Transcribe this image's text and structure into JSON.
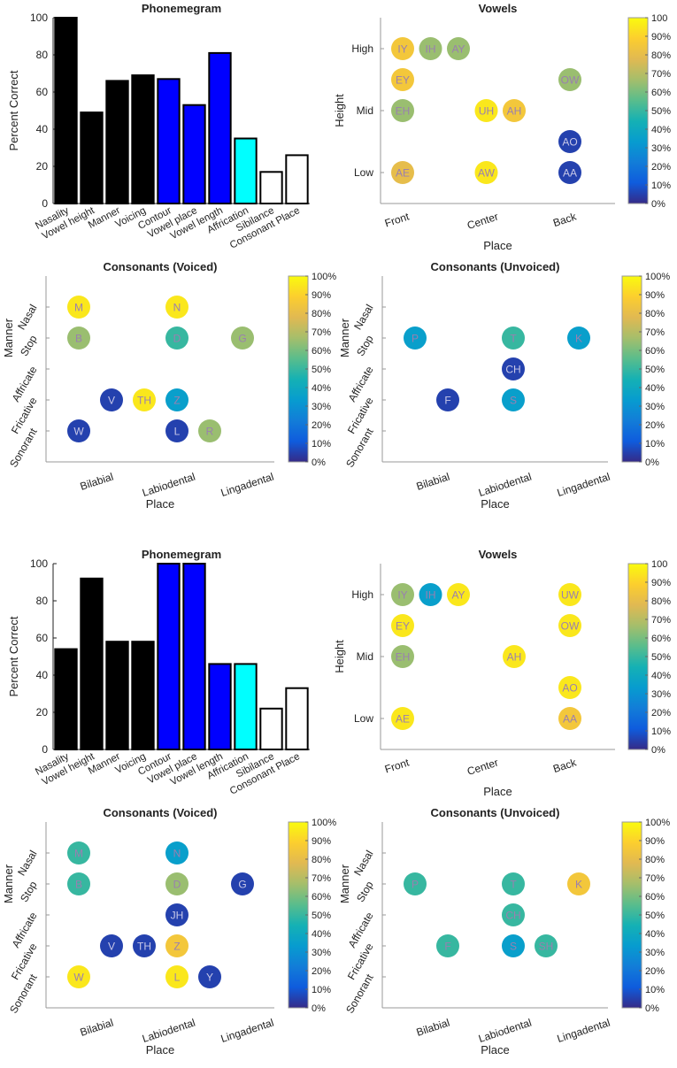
{
  "figure": {
    "description_visible": false
  },
  "charts": [
    {
      "id": "top-phonemegram",
      "type": "bar",
      "title": "Phonemegram",
      "ylabel": "Percent Correct",
      "xlabel": "",
      "ylim": [
        0,
        100
      ],
      "yticks": [
        0,
        20,
        40,
        60,
        80,
        100
      ],
      "categories": [
        "Nasality",
        "Vowel height",
        "Manner",
        "Voicing",
        "Contour",
        "Vowel place",
        "Vowel length",
        "Affrication",
        "Sibilance",
        "Consonant Place"
      ],
      "values": [
        100,
        49,
        66,
        69,
        67,
        53,
        81,
        35,
        17,
        26
      ],
      "colors": [
        "#000000",
        "#000000",
        "#000000",
        "#000000",
        "#0000ff",
        "#0000ff",
        "#0000ff",
        "#00ffff",
        "#ffffff",
        "#ffffff"
      ]
    },
    {
      "id": "top-vowels",
      "type": "scatter",
      "title": "Vowels",
      "xlabel": "Place",
      "ylabel": "Height",
      "xticks": [
        "Front",
        "Center",
        "Back"
      ],
      "yticks": [
        "High",
        "Mid",
        "Low"
      ],
      "colorbar_ticks": [
        "0%",
        "10%",
        "20%",
        "30%",
        "40%",
        "50%",
        "60%",
        "70%",
        "80%",
        "90%",
        "100"
      ],
      "points": [
        {
          "label": "IY",
          "col": 1,
          "row": 1,
          "value": 85
        },
        {
          "label": "IH",
          "col": 2,
          "row": 1,
          "value": 65
        },
        {
          "label": "AY",
          "col": 3,
          "row": 1,
          "value": 65
        },
        {
          "label": "EY",
          "col": 1,
          "row": 2,
          "value": 85
        },
        {
          "label": "OW",
          "col": 7,
          "row": 2,
          "value": 65
        },
        {
          "label": "EH",
          "col": 1,
          "row": 3,
          "value": 65
        },
        {
          "label": "UH",
          "col": 4,
          "row": 3,
          "value": 95
        },
        {
          "label": "AH",
          "col": 5,
          "row": 3,
          "value": 85
        },
        {
          "label": "AO",
          "col": 7,
          "row": 4,
          "value": 5
        },
        {
          "label": "AE",
          "col": 1,
          "row": 5,
          "value": 80
        },
        {
          "label": "AW",
          "col": 4,
          "row": 5,
          "value": 95
        },
        {
          "label": "AA",
          "col": 7,
          "row": 5,
          "value": 5
        }
      ]
    },
    {
      "id": "top-cons-voiced",
      "type": "scatter",
      "title": "Consonants (Voiced)",
      "xlabel": "Place",
      "ylabel": "Manner",
      "xticks": [
        "Bilabial",
        "Labiodental",
        "Lingadental"
      ],
      "yticks": [
        "Nasal",
        "Stop",
        "Affricate",
        "Fricative",
        "Sonorant"
      ],
      "colorbar_ticks": [
        "0%",
        "10%",
        "20%",
        "30%",
        "40%",
        "50%",
        "60%",
        "70%",
        "80%",
        "90%",
        "100%"
      ],
      "points": [
        {
          "label": "M",
          "col": 1,
          "row": 1,
          "value": 95
        },
        {
          "label": "N",
          "col": 4,
          "row": 1,
          "value": 95
        },
        {
          "label": "B",
          "col": 1,
          "row": 2,
          "value": 65
        },
        {
          "label": "D",
          "col": 4,
          "row": 2,
          "value": 50
        },
        {
          "label": "G",
          "col": 6,
          "row": 2,
          "value": 65
        },
        {
          "label": "V",
          "col": 2,
          "row": 4,
          "value": 5
        },
        {
          "label": "TH",
          "col": 3,
          "row": 4,
          "value": 95
        },
        {
          "label": "Z",
          "col": 4,
          "row": 4,
          "value": 35
        },
        {
          "label": "W",
          "col": 1,
          "row": 5,
          "value": 5
        },
        {
          "label": "L",
          "col": 4,
          "row": 5,
          "value": 5
        },
        {
          "label": "R",
          "col": 5,
          "row": 5,
          "value": 65
        }
      ]
    },
    {
      "id": "top-cons-unvoiced",
      "type": "scatter",
      "title": "Consonants (Unvoiced)",
      "xlabel": "Place",
      "ylabel": "Manner",
      "xticks": [
        "Bilabial",
        "Labiodental",
        "Lingadental"
      ],
      "yticks": [
        "Nasal",
        "Stop",
        "Affricate",
        "Fricative",
        "Sonorant"
      ],
      "colorbar_ticks": [
        "0%",
        "10%",
        "20%",
        "30%",
        "40%",
        "50%",
        "60%",
        "70%",
        "80%",
        "90%",
        "100%"
      ],
      "points": [
        {
          "label": "P",
          "col": 1,
          "row": 2,
          "value": 35
        },
        {
          "label": "T",
          "col": 4,
          "row": 2,
          "value": 50
        },
        {
          "label": "K",
          "col": 6,
          "row": 2,
          "value": 35
        },
        {
          "label": "CH",
          "col": 4,
          "row": 3,
          "value": 5
        },
        {
          "label": "F",
          "col": 2,
          "row": 4,
          "value": 5
        },
        {
          "label": "S",
          "col": 4,
          "row": 4,
          "value": 35
        }
      ]
    },
    {
      "id": "bottom-phonemegram",
      "type": "bar",
      "title": "Phonemegram",
      "ylabel": "Percent Correct",
      "xlabel": "",
      "ylim": [
        0,
        100
      ],
      "yticks": [
        0,
        20,
        40,
        60,
        80,
        100
      ],
      "categories": [
        "Nasality",
        "Vowel height",
        "Manner",
        "Voicing",
        "Contour",
        "Vowel place",
        "Vowel length",
        "Affrication",
        "Sibilance",
        "Consonant Place"
      ],
      "values": [
        54,
        92,
        58,
        58,
        100,
        100,
        46,
        46,
        22,
        33
      ],
      "colors": [
        "#000000",
        "#000000",
        "#000000",
        "#000000",
        "#0000ff",
        "#0000ff",
        "#0000ff",
        "#00ffff",
        "#ffffff",
        "#ffffff"
      ]
    },
    {
      "id": "bottom-vowels",
      "type": "scatter",
      "title": "Vowels",
      "xlabel": "Place",
      "ylabel": "Height",
      "xticks": [
        "Front",
        "Center",
        "Back"
      ],
      "yticks": [
        "High",
        "Mid",
        "Low"
      ],
      "colorbar_ticks": [
        "0%",
        "10%",
        "20%",
        "30%",
        "40%",
        "50%",
        "60%",
        "70%",
        "80%",
        "90%",
        "100"
      ],
      "points": [
        {
          "label": "IY",
          "col": 1,
          "row": 1,
          "value": 65
        },
        {
          "label": "IH",
          "col": 2,
          "row": 1,
          "value": 35
        },
        {
          "label": "AY",
          "col": 3,
          "row": 1,
          "value": 95
        },
        {
          "label": "UW",
          "col": 7,
          "row": 1,
          "value": 95
        },
        {
          "label": "EY",
          "col": 1,
          "row": 2,
          "value": 95
        },
        {
          "label": "OW",
          "col": 7,
          "row": 2,
          "value": 95
        },
        {
          "label": "EH",
          "col": 1,
          "row": 3,
          "value": 65
        },
        {
          "label": "AH",
          "col": 5,
          "row": 3,
          "value": 95
        },
        {
          "label": "AO",
          "col": 7,
          "row": 4,
          "value": 95
        },
        {
          "label": "AE",
          "col": 1,
          "row": 5,
          "value": 95
        },
        {
          "label": "AA",
          "col": 7,
          "row": 5,
          "value": 85
        }
      ]
    },
    {
      "id": "bottom-cons-voiced",
      "type": "scatter",
      "title": "Consonants (Voiced)",
      "xlabel": "Place",
      "ylabel": "Manner",
      "xticks": [
        "Bilabial",
        "Labiodental",
        "Lingadental"
      ],
      "yticks": [
        "Nasal",
        "Stop",
        "Affricate",
        "Fricative",
        "Sonorant"
      ],
      "colorbar_ticks": [
        "0%",
        "10%",
        "20%",
        "30%",
        "40%",
        "50%",
        "60%",
        "70%",
        "80%",
        "90%",
        "100%"
      ],
      "points": [
        {
          "label": "M",
          "col": 1,
          "row": 1,
          "value": 50
        },
        {
          "label": "N",
          "col": 4,
          "row": 1,
          "value": 35
        },
        {
          "label": "B",
          "col": 1,
          "row": 2,
          "value": 50
        },
        {
          "label": "D",
          "col": 4,
          "row": 2,
          "value": 65
        },
        {
          "label": "G",
          "col": 6,
          "row": 2,
          "value": 5
        },
        {
          "label": "JH",
          "col": 4,
          "row": 3,
          "value": 5
        },
        {
          "label": "V",
          "col": 2,
          "row": 4,
          "value": 5
        },
        {
          "label": "TH",
          "col": 3,
          "row": 4,
          "value": 5
        },
        {
          "label": "Z",
          "col": 4,
          "row": 4,
          "value": 85
        },
        {
          "label": "W",
          "col": 1,
          "row": 5,
          "value": 95
        },
        {
          "label": "L",
          "col": 4,
          "row": 5,
          "value": 95
        },
        {
          "label": "Y",
          "col": 5,
          "row": 5,
          "value": 5
        }
      ]
    },
    {
      "id": "bottom-cons-unvoiced",
      "type": "scatter",
      "title": "Consonants (Unvoiced)",
      "xlabel": "Place",
      "ylabel": "Manner",
      "xticks": [
        "Bilabial",
        "Labiodental",
        "Lingadental"
      ],
      "yticks": [
        "Nasal",
        "Stop",
        "Affricate",
        "Fricative",
        "Sonorant"
      ],
      "colorbar_ticks": [
        "0%",
        "10%",
        "20%",
        "30%",
        "40%",
        "50%",
        "60%",
        "70%",
        "80%",
        "90%",
        "100%"
      ],
      "points": [
        {
          "label": "P",
          "col": 1,
          "row": 2,
          "value": 50
        },
        {
          "label": "T",
          "col": 4,
          "row": 2,
          "value": 50
        },
        {
          "label": "K",
          "col": 6,
          "row": 2,
          "value": 85
        },
        {
          "label": "CH",
          "col": 4,
          "row": 3,
          "value": 50
        },
        {
          "label": "F",
          "col": 2,
          "row": 4,
          "value": 50
        },
        {
          "label": "S",
          "col": 4,
          "row": 4,
          "value": 35
        },
        {
          "label": "SH",
          "col": 5,
          "row": 4,
          "value": 50
        }
      ]
    }
  ],
  "chart_data": [
    {
      "type": "bar",
      "title": "Phonemegram",
      "ylabel": "Percent Correct",
      "ylim": [
        0,
        100
      ],
      "categories": [
        "Nasality",
        "Vowel height",
        "Manner",
        "Voicing",
        "Contour",
        "Vowel place",
        "Vowel length",
        "Affrication",
        "Sibilance",
        "Consonant Place"
      ],
      "values": [
        100,
        49,
        66,
        69,
        67,
        53,
        81,
        35,
        17,
        26
      ]
    },
    {
      "type": "scatter",
      "title": "Vowels",
      "xlabel": "Place",
      "ylabel": "Height"
    },
    {
      "type": "scatter",
      "title": "Consonants (Voiced)",
      "xlabel": "Place",
      "ylabel": "Manner"
    },
    {
      "type": "scatter",
      "title": "Consonants (Unvoiced)",
      "xlabel": "Place",
      "ylabel": "Manner"
    },
    {
      "type": "bar",
      "title": "Phonemegram",
      "ylabel": "Percent Correct",
      "ylim": [
        0,
        100
      ],
      "categories": [
        "Nasality",
        "Vowel height",
        "Manner",
        "Voicing",
        "Contour",
        "Vowel place",
        "Vowel length",
        "Affrication",
        "Sibilance",
        "Consonant Place"
      ],
      "values": [
        54,
        92,
        58,
        58,
        100,
        100,
        46,
        46,
        22,
        33
      ]
    },
    {
      "type": "scatter",
      "title": "Vowels",
      "xlabel": "Place",
      "ylabel": "Height"
    },
    {
      "type": "scatter",
      "title": "Consonants (Voiced)",
      "xlabel": "Place",
      "ylabel": "Manner"
    },
    {
      "type": "scatter",
      "title": "Consonants (Unvoiced)",
      "xlabel": "Place",
      "ylabel": "Manner"
    }
  ]
}
